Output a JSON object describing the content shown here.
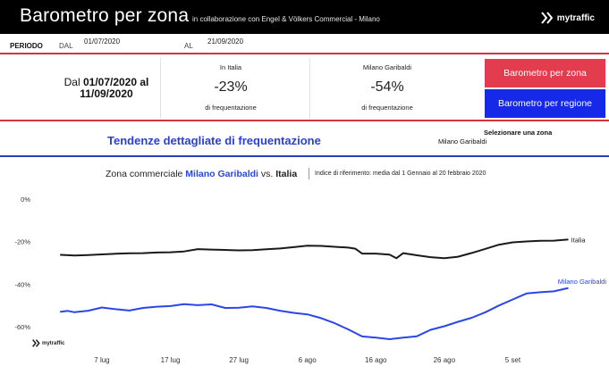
{
  "header": {
    "title": "Barometro per zona",
    "subtitle": "in collaborazione con Engel & Völkers Commercial - Milano",
    "logo_text": "mytraffic"
  },
  "period": {
    "label": "PERIODO",
    "from_label": "DAL",
    "from_value": "01/07/2020",
    "to_label": "AL",
    "to_value": "21/09/2020"
  },
  "kpi": {
    "range_line1_prefix": "Dal ",
    "range_line1_date": "01/07/2020",
    "range_line1_suffix": " al",
    "range_line2_date": "11/09/2020",
    "italy": {
      "label": "In Italia",
      "value": "-23%",
      "sub": "di frequentazione"
    },
    "zone": {
      "label": "Milano Garibaldi",
      "value": "-54%",
      "sub": "di frequentazione"
    },
    "btn_zone": "Barometro per zona",
    "btn_region": "Barometro per regione",
    "btn_zone_color": "#e23c4e",
    "btn_region_color": "#1629e8"
  },
  "trend": {
    "title": "Tendenze dettagliate di frequentazione",
    "select_label": "Selezionare una zona",
    "select_value": "Milano Garibaldi"
  },
  "chart_head": {
    "prefix": "Zona commerciale ",
    "zone": "Milano Garibaldi",
    "vs": " vs. ",
    "country": "Italia",
    "note": "Indice di riferimento: media dal 1 Gennaio al 20 febbraio 2020"
  },
  "footer": {
    "logo_text": "mytraffic"
  },
  "chart_data": {
    "type": "line",
    "title": "",
    "xlabel": "",
    "ylabel": "",
    "x_start": "2020-07-01",
    "x_ticks": [
      {
        "label": "7 lug",
        "date": "2020-07-07"
      },
      {
        "label": "17 lug",
        "date": "2020-07-17"
      },
      {
        "label": "27 lug",
        "date": "2020-07-27"
      },
      {
        "label": "6 ago",
        "date": "2020-08-06"
      },
      {
        "label": "16 ago",
        "date": "2020-08-16"
      },
      {
        "label": "26 ago",
        "date": "2020-08-26"
      },
      {
        "label": "5 set",
        "date": "2020-09-05"
      }
    ],
    "y_ticks": [
      {
        "label": "0%",
        "value": 0
      },
      {
        "label": "-20%",
        "value": -20
      },
      {
        "label": "-40%",
        "value": -40
      },
      {
        "label": "-60%",
        "value": -60
      }
    ],
    "ylim": [
      -68,
      3
    ],
    "x_range": [
      "2020-07-01",
      "2020-09-15"
    ],
    "grid": false,
    "series": [
      {
        "name": "Italia",
        "color": "#1a1a1a",
        "points": [
          [
            "2020-07-01",
            -26.2
          ],
          [
            "2020-07-03",
            -26.5
          ],
          [
            "2020-07-05",
            -26.3
          ],
          [
            "2020-07-07",
            -26.0
          ],
          [
            "2020-07-09",
            -25.7
          ],
          [
            "2020-07-11",
            -25.5
          ],
          [
            "2020-07-13",
            -25.4
          ],
          [
            "2020-07-15",
            -25.1
          ],
          [
            "2020-07-17",
            -25.0
          ],
          [
            "2020-07-19",
            -24.6
          ],
          [
            "2020-07-21",
            -23.5
          ],
          [
            "2020-07-23",
            -23.7
          ],
          [
            "2020-07-25",
            -23.9
          ],
          [
            "2020-07-27",
            -24.1
          ],
          [
            "2020-07-29",
            -24.0
          ],
          [
            "2020-07-31",
            -23.6
          ],
          [
            "2020-08-02",
            -23.2
          ],
          [
            "2020-08-04",
            -22.6
          ],
          [
            "2020-08-06",
            -21.9
          ],
          [
            "2020-08-08",
            -22.0
          ],
          [
            "2020-08-10",
            -22.4
          ],
          [
            "2020-08-12",
            -22.8
          ],
          [
            "2020-08-13",
            -23.3
          ],
          [
            "2020-08-14",
            -25.6
          ],
          [
            "2020-08-16",
            -25.6
          ],
          [
            "2020-08-18",
            -26.1
          ],
          [
            "2020-08-19",
            -27.8
          ],
          [
            "2020-08-20",
            -25.4
          ],
          [
            "2020-08-22",
            -26.4
          ],
          [
            "2020-08-24",
            -27.3
          ],
          [
            "2020-08-26",
            -27.8
          ],
          [
            "2020-08-28",
            -27.1
          ],
          [
            "2020-08-30",
            -25.3
          ],
          [
            "2020-09-01",
            -23.4
          ],
          [
            "2020-09-03",
            -21.4
          ],
          [
            "2020-09-05",
            -20.3
          ],
          [
            "2020-09-07",
            -19.9
          ],
          [
            "2020-09-09",
            -19.6
          ],
          [
            "2020-09-11",
            -19.5
          ],
          [
            "2020-09-13",
            -19.0
          ]
        ]
      },
      {
        "name": "Milano Garibaldi",
        "color": "#2a46e8",
        "points": [
          [
            "2020-07-01",
            -53.0
          ],
          [
            "2020-07-02",
            -52.6
          ],
          [
            "2020-07-03",
            -53.2
          ],
          [
            "2020-07-05",
            -52.5
          ],
          [
            "2020-07-07",
            -51.0
          ],
          [
            "2020-07-09",
            -51.8
          ],
          [
            "2020-07-11",
            -52.4
          ],
          [
            "2020-07-13",
            -51.2
          ],
          [
            "2020-07-15",
            -50.6
          ],
          [
            "2020-07-17",
            -50.3
          ],
          [
            "2020-07-19",
            -49.4
          ],
          [
            "2020-07-21",
            -49.9
          ],
          [
            "2020-07-23",
            -49.5
          ],
          [
            "2020-07-25",
            -51.2
          ],
          [
            "2020-07-27",
            -51.1
          ],
          [
            "2020-07-29",
            -50.5
          ],
          [
            "2020-07-31",
            -51.2
          ],
          [
            "2020-08-02",
            -52.5
          ],
          [
            "2020-08-04",
            -53.5
          ],
          [
            "2020-08-06",
            -54.2
          ],
          [
            "2020-08-08",
            -56.0
          ],
          [
            "2020-08-10",
            -58.4
          ],
          [
            "2020-08-12",
            -61.3
          ],
          [
            "2020-08-14",
            -64.6
          ],
          [
            "2020-08-16",
            -65.2
          ],
          [
            "2020-08-18",
            -65.9
          ],
          [
            "2020-08-20",
            -65.2
          ],
          [
            "2020-08-22",
            -64.5
          ],
          [
            "2020-08-24",
            -61.5
          ],
          [
            "2020-08-26",
            -59.8
          ],
          [
            "2020-08-28",
            -57.7
          ],
          [
            "2020-08-30",
            -55.8
          ],
          [
            "2020-09-01",
            -53.2
          ],
          [
            "2020-09-03",
            -50.0
          ],
          [
            "2020-09-05",
            -47.2
          ],
          [
            "2020-09-07",
            -44.4
          ],
          [
            "2020-09-09",
            -43.8
          ],
          [
            "2020-09-11",
            -43.4
          ],
          [
            "2020-09-13",
            -41.9
          ]
        ]
      }
    ]
  }
}
